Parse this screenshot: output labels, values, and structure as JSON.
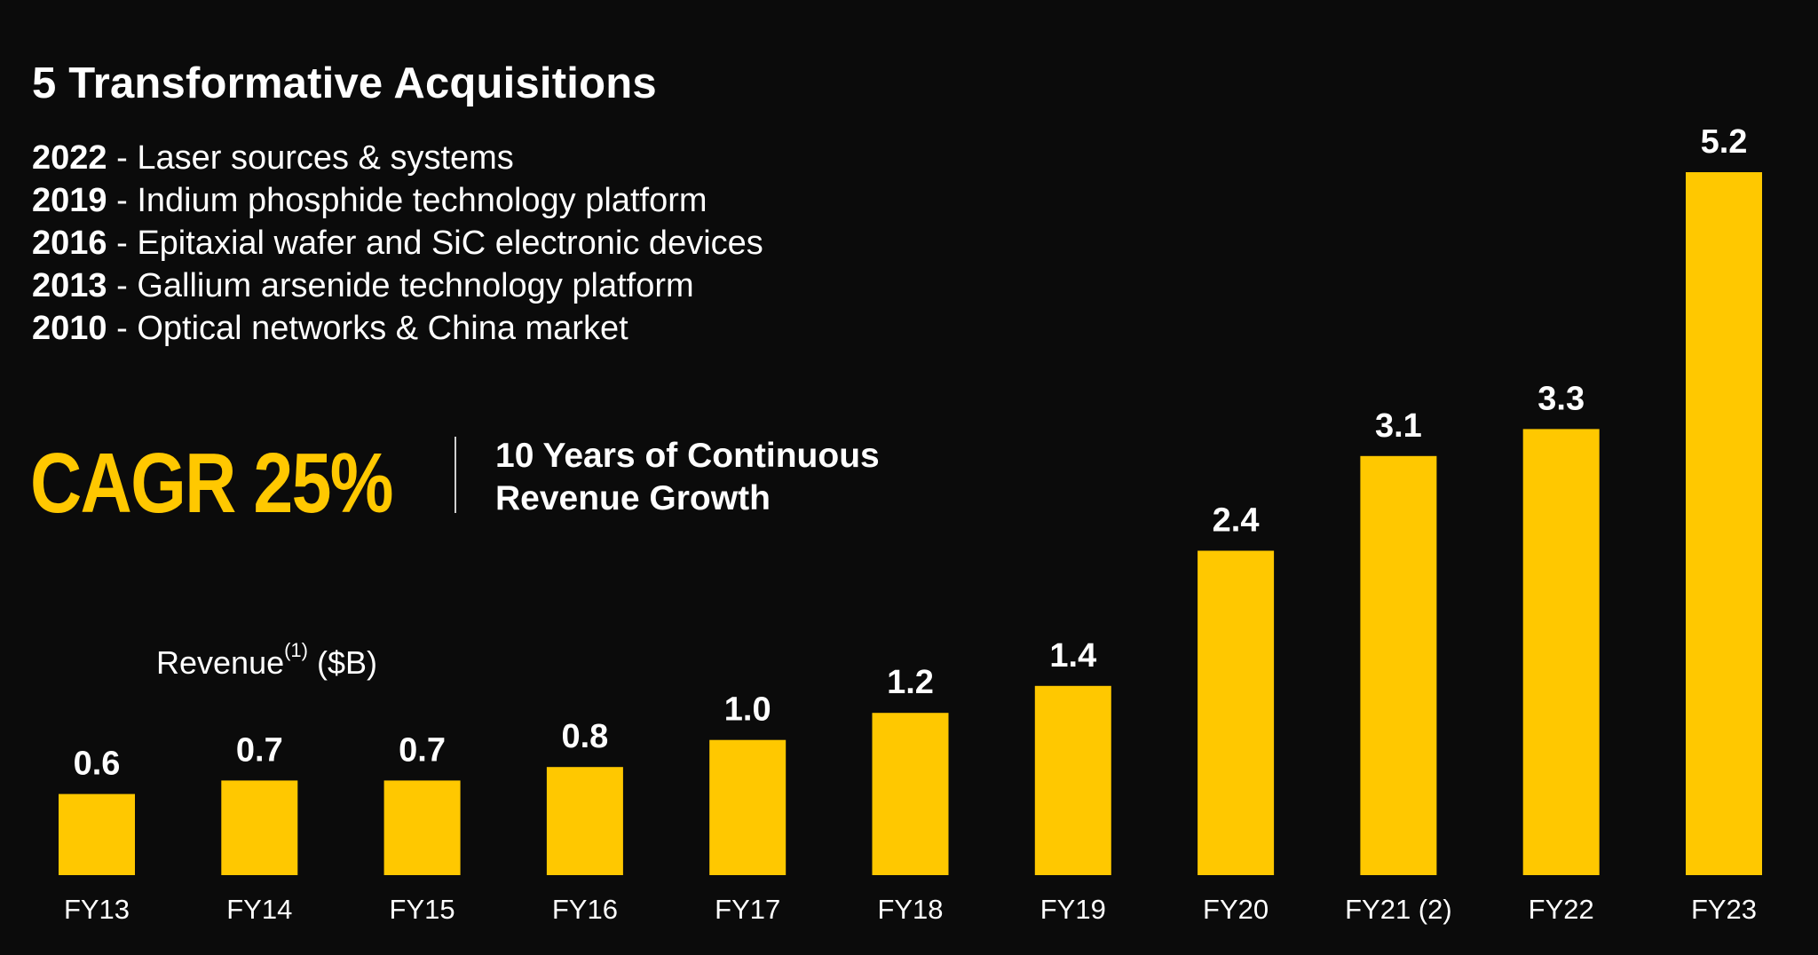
{
  "header": {
    "title": "5 Transformative Acquisitions"
  },
  "acquisitions": [
    {
      "year": "2022",
      "sep": " - ",
      "desc": "Laser sources & systems"
    },
    {
      "year": "2019",
      "sep": " - ",
      "desc": "Indium phosphide technology platform"
    },
    {
      "year": "2016",
      "sep": " - ",
      "desc": "Epitaxial wafer and SiC electronic devices"
    },
    {
      "year": "2013",
      "sep": " - ",
      "desc": "Gallium arsenide technology platform"
    },
    {
      "year": "2010",
      "sep": " - ",
      "desc": "Optical networks & China market"
    }
  ],
  "highlight": {
    "cagr": "CAGR 25%",
    "line1": "10 Years of Continuous",
    "line2": "Revenue Growth"
  },
  "revenue_label": {
    "main": "Revenue",
    "footnote": "(1)",
    "unit": " ($B)"
  },
  "colors": {
    "accent": "#ffc800",
    "background": "#0b0b0b"
  },
  "chart_data": {
    "type": "bar",
    "title": "Revenue(1) ($B)",
    "categories": [
      "FY13",
      "FY14",
      "FY15",
      "FY16",
      "FY17",
      "FY18",
      "FY19",
      "FY20",
      "FY21 (2)",
      "FY22",
      "FY23"
    ],
    "values": [
      0.6,
      0.7,
      0.7,
      0.8,
      1.0,
      1.2,
      1.4,
      2.4,
      3.1,
      3.3,
      5.2
    ],
    "value_labels": [
      "0.6",
      "0.7",
      "0.7",
      "0.8",
      "1.0",
      "1.2",
      "1.4",
      "2.4",
      "3.1",
      "3.3",
      "5.2"
    ],
    "xlabel": "",
    "ylabel": "Revenue ($B)",
    "ylim": [
      0,
      5.2
    ],
    "grid": false
  }
}
